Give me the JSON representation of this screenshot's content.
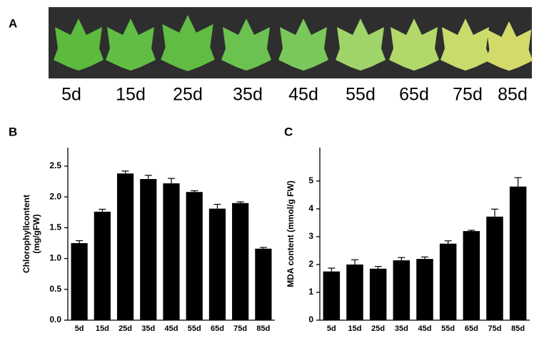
{
  "panel_a": {
    "label": "A",
    "labels": [
      "5d",
      "15d",
      "25d",
      "35d",
      "45d",
      "55d",
      "65d",
      "75d",
      "85d"
    ]
  },
  "chart_data": [
    {
      "type": "bar",
      "panel_label": "B",
      "ylabel": [
        "Chlorophyllcontent",
        "(mg/gFW)"
      ],
      "categories": [
        "5d",
        "15d",
        "25d",
        "35d",
        "45d",
        "55d",
        "65d",
        "75d",
        "85d"
      ],
      "values": [
        1.25,
        1.76,
        2.38,
        2.29,
        2.22,
        2.08,
        1.81,
        1.9,
        1.16
      ],
      "errors": [
        0.04,
        0.04,
        0.04,
        0.06,
        0.08,
        0.02,
        0.07,
        0.02,
        0.02
      ],
      "color": "#000000",
      "ylim": [
        0,
        2.8
      ],
      "yticks": [
        {
          "value": 0,
          "label": "0.0"
        },
        {
          "value": 0.5,
          "label": "0.5"
        },
        {
          "value": 1,
          "label": "1.0"
        },
        {
          "value": 1.5,
          "label": "1.5"
        },
        {
          "value": 2,
          "label": "2.0"
        },
        {
          "value": 2.5,
          "label": "2.5"
        }
      ]
    },
    {
      "type": "bar",
      "panel_label": "C",
      "ylabel": [
        "MDA content (mmol/g FW)"
      ],
      "categories": [
        "5d",
        "15d",
        "25d",
        "35d",
        "45d",
        "55d",
        "65d",
        "75d",
        "85d"
      ],
      "values": [
        1.75,
        2.0,
        1.85,
        2.15,
        2.2,
        2.75,
        3.2,
        3.72,
        4.8
      ],
      "errors": [
        0.12,
        0.17,
        0.08,
        0.1,
        0.07,
        0.1,
        0.03,
        0.27,
        0.32
      ],
      "color": "#000000",
      "ylim": [
        0,
        6.2
      ],
      "yticks": [
        0,
        1,
        2,
        3,
        4,
        5
      ]
    }
  ]
}
